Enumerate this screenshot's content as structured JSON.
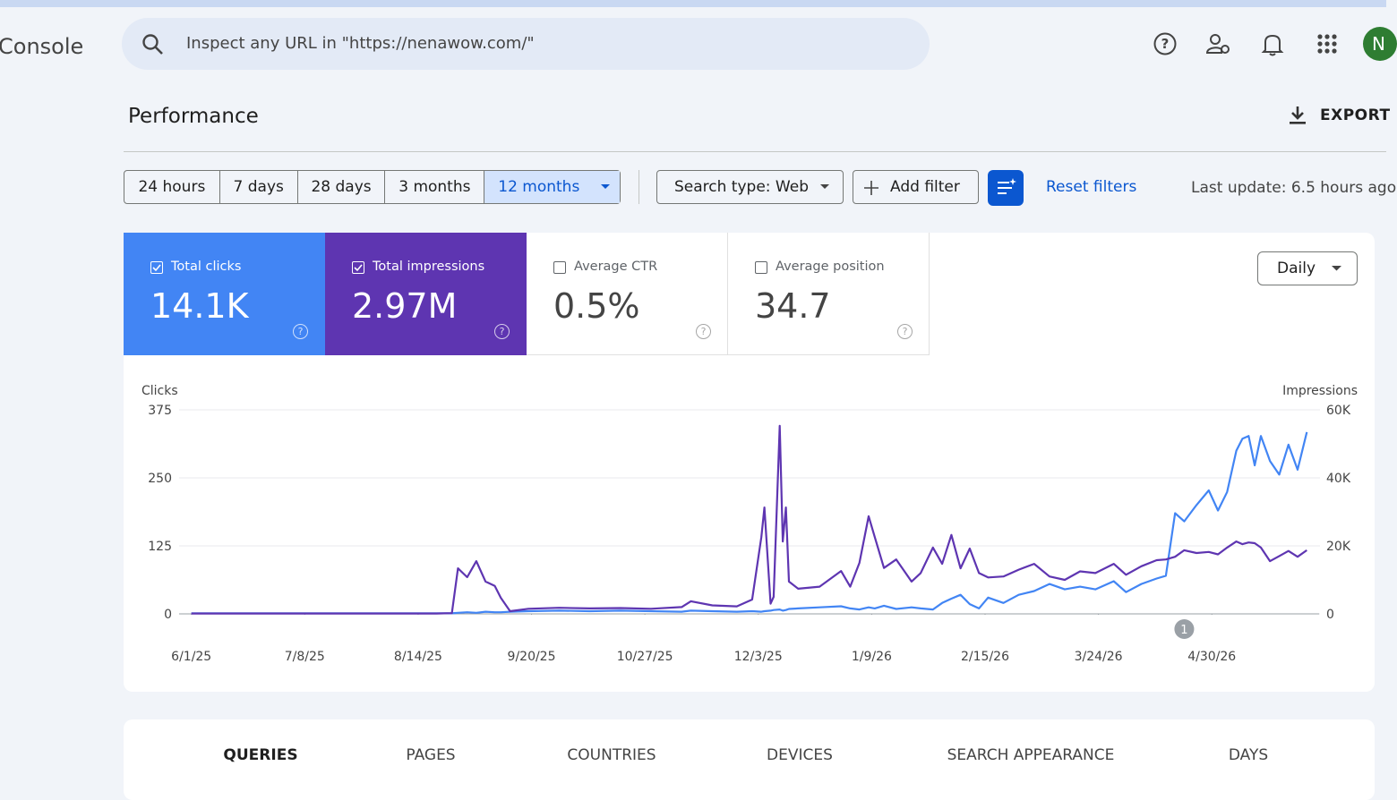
{
  "header": {
    "app_title": "Console",
    "search_placeholder": "Inspect any URL in \"https://nenawow.com/\"",
    "avatar": "N"
  },
  "page_title": "Performance",
  "export": "EXPORT",
  "date_ranges": [
    "24 hours",
    "7 days",
    "28 days",
    "3 months",
    "12 months"
  ],
  "selected_range": 4,
  "filters": {
    "search_type": "Search type: Web",
    "add_filter": "Add filter",
    "reset": "Reset filters"
  },
  "last_update": "Last update: 6.5 hours ago",
  "metrics": [
    {
      "label": "Total clicks",
      "value": "14.1K",
      "selected": true,
      "color": "#4285f4"
    },
    {
      "label": "Total impressions",
      "value": "2.97M",
      "selected": true,
      "color": "#5e35b1"
    },
    {
      "label": "Average CTR",
      "value": "0.5%",
      "selected": false
    },
    {
      "label": "Average position",
      "value": "34.7",
      "selected": false
    }
  ],
  "granularity": "Daily",
  "chart_data": {
    "type": "line",
    "y_label": "Clicks",
    "y2_label": "Impressions",
    "x": [
      0,
      10,
      20,
      30,
      40,
      50,
      60,
      70,
      80,
      85,
      87,
      90,
      93,
      96,
      99,
      101,
      104,
      110,
      120,
      130,
      140,
      150,
      160,
      163,
      170,
      178,
      183,
      186,
      187,
      189,
      190,
      192,
      193,
      194,
      195,
      198,
      205,
      212,
      215,
      218,
      221,
      223,
      226,
      230,
      235,
      238,
      242,
      245,
      248,
      251,
      254,
      257,
      260,
      265,
      270,
      275,
      280,
      285,
      290,
      295,
      301,
      305,
      310,
      315,
      318,
      321,
      324,
      328,
      332,
      335,
      338,
      341,
      343,
      345,
      347,
      349,
      352,
      355,
      358,
      361,
      364
    ],
    "xlim": [
      -4,
      368
    ],
    "xticks": [
      {
        "value": 0,
        "label": "6/1/25"
      },
      {
        "value": 37,
        "label": "7/8/25"
      },
      {
        "value": 74,
        "label": "8/14/25"
      },
      {
        "value": 111,
        "label": "9/20/25"
      },
      {
        "value": 148,
        "label": "10/27/25"
      },
      {
        "value": 185,
        "label": "12/3/25"
      },
      {
        "value": 222,
        "label": "1/9/26"
      },
      {
        "value": 259,
        "label": "2/15/26"
      },
      {
        "value": 296,
        "label": "3/24/26"
      },
      {
        "value": 333,
        "label": "4/30/26"
      }
    ],
    "ylim": [
      0,
      375
    ],
    "yticks": [
      0,
      125,
      250,
      375
    ],
    "y2lim": [
      0,
      60000
    ],
    "y2ticks": [
      0,
      {
        "value": 20000,
        "label": "20K"
      },
      {
        "value": 40000,
        "label": "40K"
      },
      {
        "value": 60000,
        "label": "60K"
      }
    ],
    "grid": true,
    "series": [
      {
        "name": "Total clicks",
        "color": "#4285f4",
        "values": [
          1,
          1,
          1,
          1,
          1,
          1,
          1,
          1,
          1,
          1,
          2,
          3,
          2,
          4,
          3,
          3,
          4,
          5,
          6,
          5,
          6,
          5,
          4,
          6,
          5,
          4,
          5,
          4,
          5,
          6,
          7,
          8,
          6,
          7,
          9,
          10,
          12,
          14,
          10,
          8,
          12,
          10,
          15,
          9,
          12,
          10,
          8,
          20,
          28,
          35,
          18,
          10,
          30,
          20,
          35,
          42,
          55,
          45,
          50,
          45,
          60,
          40,
          55,
          65,
          70,
          185,
          170,
          200,
          227,
          190,
          224,
          300,
          322,
          327,
          273,
          327,
          281,
          256,
          311,
          265,
          334
        ]
      },
      {
        "name": "Total impressions",
        "color": "#5e35b1",
        "axis": "y2",
        "values": [
          100,
          100,
          100,
          100,
          100,
          100,
          100,
          100,
          100,
          200,
          13400,
          10800,
          15500,
          9500,
          8200,
          4700,
          800,
          1500,
          1800,
          1600,
          1700,
          1500,
          2000,
          3700,
          2500,
          2200,
          4200,
          22600,
          31300,
          3000,
          5000,
          55300,
          21300,
          31300,
          9500,
          7400,
          8000,
          12600,
          8000,
          15000,
          28700,
          22600,
          13500,
          16000,
          9500,
          12000,
          19500,
          14700,
          23200,
          13400,
          19200,
          12000,
          10700,
          11000,
          13000,
          14700,
          11000,
          10000,
          12500,
          12000,
          14700,
          11500,
          14000,
          15800,
          16000,
          16800,
          18700,
          17900,
          18200,
          17500,
          19500,
          21300,
          20500,
          21000,
          20800,
          19500,
          15500,
          17000,
          18500,
          16800,
          18700
        ]
      }
    ],
    "annotation": {
      "x": 324,
      "label": "1"
    }
  },
  "tabs": [
    "QUERIES",
    "PAGES",
    "COUNTRIES",
    "DEVICES",
    "SEARCH APPEARANCE",
    "DAYS"
  ],
  "active_tab": 0
}
